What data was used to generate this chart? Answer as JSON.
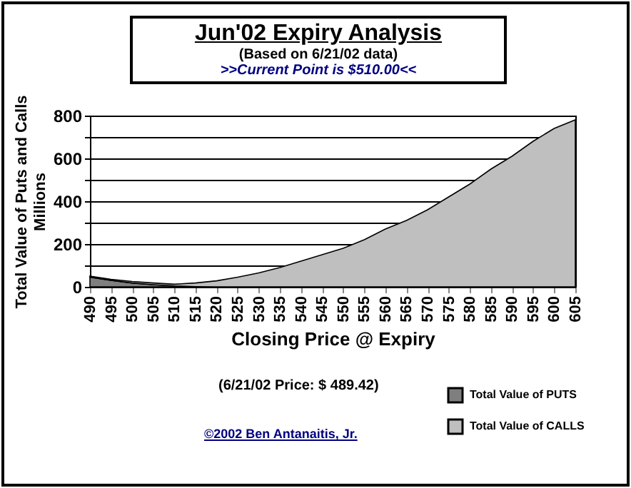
{
  "chart_data": {
    "type": "area",
    "title": "Jun'02 Expiry Analysis",
    "subtitle": "(Based on 6/21/02 data)",
    "ylabel": "Total Value of Puts and Calls",
    "xlabel": "Closing Price @ Expiry",
    "annotations": [
      ">>Current Point is $510.00<<",
      "Millions",
      "(6/21/02 Price: $ 489.42)",
      "©2002 Ben Antanaitis, Jr."
    ],
    "categories": [
      "490",
      "495",
      "500",
      "505",
      "510",
      "515",
      "520",
      "525",
      "530",
      "535",
      "540",
      "545",
      "550",
      "555",
      "560",
      "565",
      "570",
      "575",
      "580",
      "585",
      "590",
      "595",
      "600",
      "605"
    ],
    "stacked": true,
    "series": [
      {
        "name": "Total Value of PUTS",
        "color": "#7f7f7f",
        "values": [
          45,
          30,
          18,
          10,
          4,
          1,
          0,
          0,
          0,
          0,
          0,
          0,
          0,
          0,
          0,
          0,
          0,
          0,
          0,
          0,
          0,
          0,
          0,
          0
        ]
      },
      {
        "name": "Total Value of CALLS",
        "color": "#bfbfbf",
        "values": [
          5,
          5,
          7,
          8,
          8,
          17,
          28,
          45,
          65,
          90,
          120,
          150,
          180,
          220,
          270,
          310,
          360,
          420,
          480,
          550,
          610,
          680,
          740,
          780
        ]
      }
    ],
    "ylim": [
      0,
      800
    ],
    "yticks": [
      0,
      {
        "value": 100,
        "label": null
      },
      200,
      {
        "value": 300,
        "label": null
      },
      400,
      {
        "value": 500,
        "label": null
      },
      600,
      {
        "value": 700,
        "label": null
      },
      800
    ],
    "grid": "y",
    "legend": "bottom right"
  }
}
